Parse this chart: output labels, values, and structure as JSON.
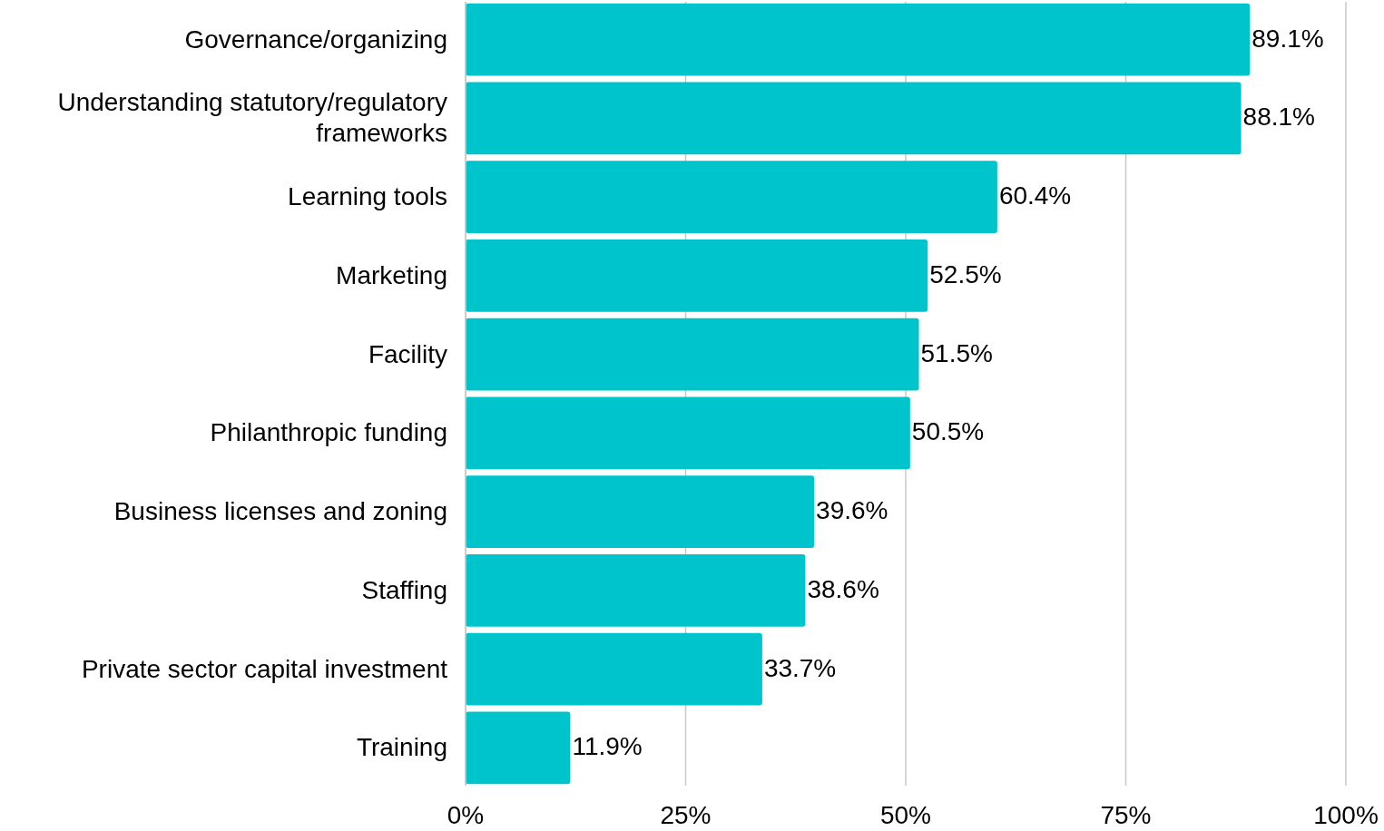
{
  "chart_data": {
    "type": "bar",
    "orientation": "horizontal",
    "categories": [
      "Governance/organizing",
      "Understanding statutory/regulatory frameworks",
      "Learning tools",
      "Marketing",
      "Facility",
      "Philanthropic funding",
      "Business licenses and zoning",
      "Staffing",
      "Private sector capital investment",
      "Training"
    ],
    "values": [
      89.1,
      88.1,
      60.4,
      52.5,
      51.5,
      50.5,
      39.6,
      38.6,
      33.7,
      11.9
    ],
    "value_labels": [
      "89.1%",
      "88.1%",
      "60.4%",
      "52.5%",
      "51.5%",
      "50.5%",
      "39.6%",
      "38.6%",
      "33.7%",
      "11.9%"
    ],
    "color": "#00c4cc",
    "xlim": [
      0,
      100
    ],
    "xticks": [
      {
        "value": 0,
        "label": "0%"
      },
      {
        "value": 25,
        "label": "25%"
      },
      {
        "value": 50,
        "label": "50%"
      },
      {
        "value": 75,
        "label": "75%"
      },
      {
        "value": 100,
        "label": "100%"
      }
    ],
    "grid": "x"
  }
}
